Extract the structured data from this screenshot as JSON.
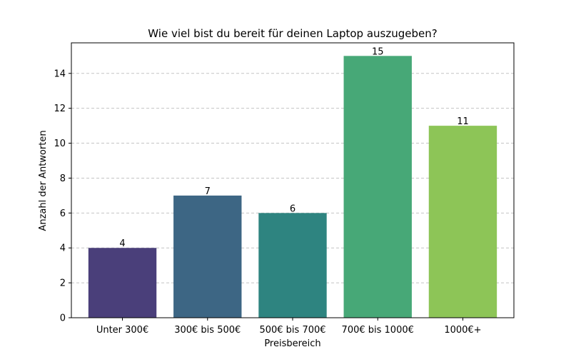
{
  "chart_data": {
    "type": "bar",
    "title": "Wie viel bist du bereit für deinen Laptop auszugeben?",
    "xlabel": "Preisbereich",
    "ylabel": "Anzahl der Antworten",
    "categories": [
      "Unter 300€",
      "300€ bis 500€",
      "500€ bis 700€",
      "700€ bis 1000€",
      "1000€+"
    ],
    "values": [
      4,
      7,
      6,
      15,
      11
    ],
    "data_labels": [
      "4",
      "7",
      "6",
      "15",
      "11"
    ],
    "colors": [
      "#4a3f7a",
      "#3d6684",
      "#2e8480",
      "#47a877",
      "#8dc557"
    ],
    "ylim": [
      0,
      15.75
    ],
    "yticks": [
      0,
      2,
      4,
      6,
      8,
      10,
      12,
      14
    ],
    "grid": "y-dashed",
    "grid_color": "#c4c4c4"
  }
}
